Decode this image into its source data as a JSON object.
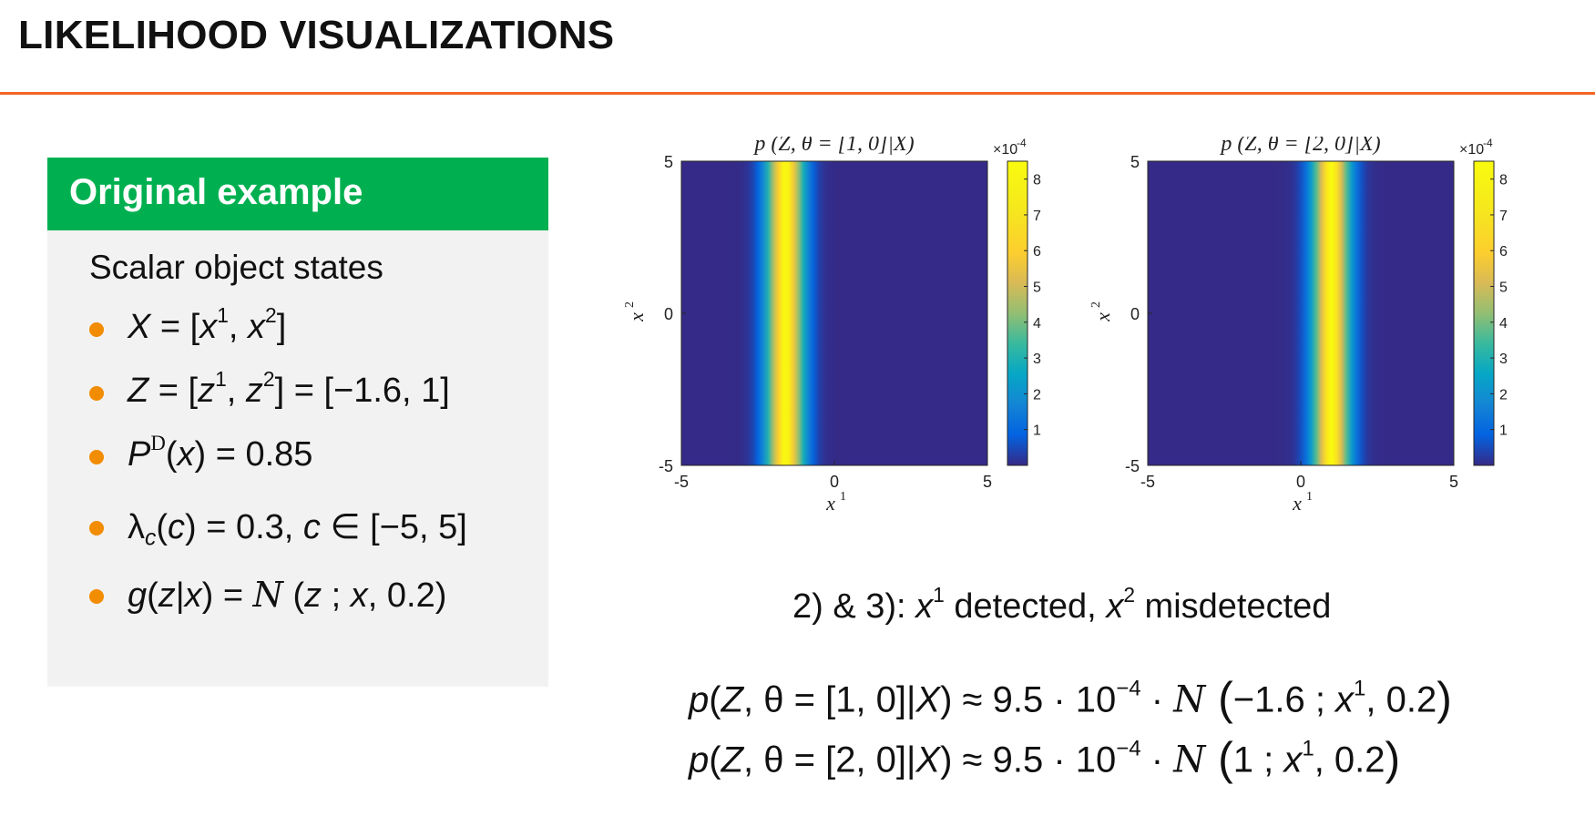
{
  "slide": {
    "title": "LIKELIHOOD VISUALIZATIONS"
  },
  "example": {
    "header": "Original example",
    "subheading": "Scalar object states",
    "bullets": {
      "b1": {
        "lhs": "X",
        "eq": " = [",
        "x1": "x",
        "s1": "1",
        "sep": ",  ",
        "x2": "x",
        "s2": "2",
        "end": "]"
      },
      "b2": {
        "lhs": "Z",
        "eq": " = [",
        "z1": "z",
        "s1": "1",
        "sep": ",  ",
        "z2": "z",
        "s2": "2",
        "rhs": "] = [−1.6,  1]"
      },
      "b3": {
        "lhs": "P",
        "sup": "D",
        "arg": "(",
        "x": "x",
        "rhs": ") = 0.85"
      },
      "b4": {
        "lhs": "λ",
        "sub": "c",
        "open": "(",
        "c": "c",
        "mid": ") = 0.3,  ",
        "c2": "c",
        "rhs": " ∈ [−5,  5]"
      },
      "b5": {
        "g": "g",
        "open": "(",
        "z": "z",
        "bar": "|",
        "x": "x",
        "eq": ") = ",
        "N": "N",
        "args_open": " (",
        "z2": "z",
        "semi": " ;  ",
        "x2": "x",
        "rest": ", 0.2)"
      }
    }
  },
  "chart_data": [
    {
      "type": "heatmap",
      "title": "p (Z, θ = [1,  0]|X)",
      "xlabel": "x",
      "xlabel_sup": "1",
      "ylabel": "x",
      "ylabel_sup": "2",
      "xlim": [
        -5,
        5
      ],
      "ylim": [
        -5,
        5
      ],
      "xticks": [
        -5,
        0,
        5
      ],
      "yticks": [
        -5,
        0,
        5
      ],
      "colormap": "parula",
      "colorbar": {
        "ticks": [
          1,
          2,
          3,
          4,
          5,
          6,
          7,
          8
        ],
        "multiplier": "×10",
        "multiplier_exp": "-4",
        "min": 0,
        "max": 8.5
      },
      "model": {
        "varies_along": "x1",
        "peak": 8.5,
        "mean": -1.6,
        "std": 0.447
      }
    },
    {
      "type": "heatmap",
      "title": "p (Z, θ = [2,  0]|X)",
      "xlabel": "x",
      "xlabel_sup": "1",
      "ylabel": "x",
      "ylabel_sup": "2",
      "xlim": [
        -5,
        5
      ],
      "ylim": [
        -5,
        5
      ],
      "xticks": [
        -5,
        0,
        5
      ],
      "yticks": [
        -5,
        0,
        5
      ],
      "colormap": "parula",
      "colorbar": {
        "ticks": [
          1,
          2,
          3,
          4,
          5,
          6,
          7,
          8
        ],
        "multiplier": "×10",
        "multiplier_exp": "-4",
        "min": 0,
        "max": 8.5
      },
      "model": {
        "varies_along": "x1",
        "peak": 8.5,
        "mean": 1,
        "std": 0.447
      }
    }
  ],
  "caption": {
    "pre": "2) & 3): ",
    "x1": "x",
    "s1": "1",
    "mid": " detected, ",
    "x2": "x",
    "s2": "2",
    "post": " misdetected"
  },
  "formulas": {
    "f1": {
      "p": "p",
      "open": "(",
      "Z": "Z",
      "theta": ", θ = [1, 0]|",
      "X": "X",
      "approx": ") ≈ 9.5 · 10",
      "exp": "−4",
      "dot": " · ",
      "N": "N",
      "lp": " (",
      "args": "−1.6 ;  ",
      "x": "x",
      "sup": "1",
      "tail": ", 0.2",
      "rp": ")"
    },
    "f2": {
      "p": "p",
      "open": "(",
      "Z": "Z",
      "theta": ", θ = [2, 0]|",
      "X": "X",
      "approx": ") ≈ 9.5 · 10",
      "exp": "−4",
      "dot": " · ",
      "N": "N",
      "lp": " (",
      "args": "1 ;  ",
      "x": "x",
      "sup": "1",
      "tail": ", 0.2",
      "rp": ")"
    }
  }
}
